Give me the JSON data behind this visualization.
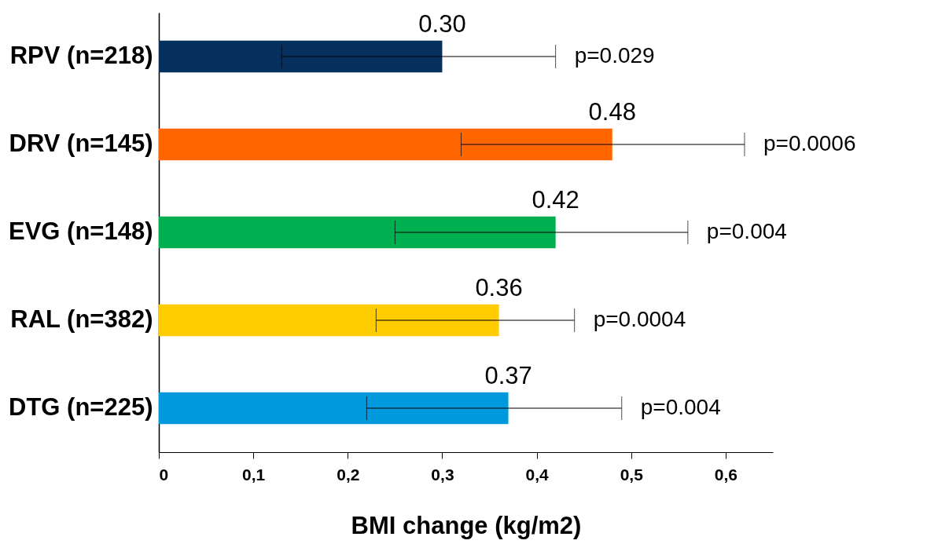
{
  "chart_data": {
    "type": "bar",
    "orientation": "horizontal",
    "xlabel": "BMI change (kg/m2)",
    "categories": [
      "RPV (n=218)",
      "DRV (n=145)",
      "EVG (n=148)",
      "RAL (n=382)",
      "DTG (n=225)"
    ],
    "values": [
      0.3,
      0.48,
      0.42,
      0.36,
      0.37
    ],
    "colors": [
      "#06305e",
      "#ff6600",
      "#00b050",
      "#ffcc00",
      "#0099dd"
    ],
    "errors": [
      [
        0.13,
        0.42
      ],
      [
        0.32,
        0.62
      ],
      [
        0.25,
        0.56
      ],
      [
        0.23,
        0.44
      ],
      [
        0.22,
        0.49
      ]
    ],
    "value_labels": [
      "0.30",
      "0.48",
      "0.42",
      "0.36",
      "0.37"
    ],
    "annotations": [
      {
        "text": "p=0.029",
        "x": 0.42,
        "y": "RPV (n=218)"
      },
      {
        "text": "p=0.0006",
        "x": 0.62,
        "y": "DRV (n=145)"
      },
      {
        "text": "p=0.004",
        "x": 0.56,
        "y": "EVG (n=148)"
      },
      {
        "text": "p=0.0004",
        "x": 0.44,
        "y": "RAL (n=382)"
      },
      {
        "text": "p=0.004",
        "x": 0.49,
        "y": "DTG (n=225)"
      }
    ],
    "xlim": [
      0,
      0.65
    ],
    "xticks": [
      0,
      {
        "value": 0.1,
        "label": "0,1"
      },
      {
        "value": 0.2,
        "label": "0,2"
      },
      {
        "value": 0.3,
        "label": "0,3"
      },
      {
        "value": 0.4,
        "label": "0,4"
      },
      {
        "value": 0.5,
        "label": "0,5"
      },
      {
        "value": 0.6,
        "label": "0,6"
      }
    ],
    "grid": false
  }
}
